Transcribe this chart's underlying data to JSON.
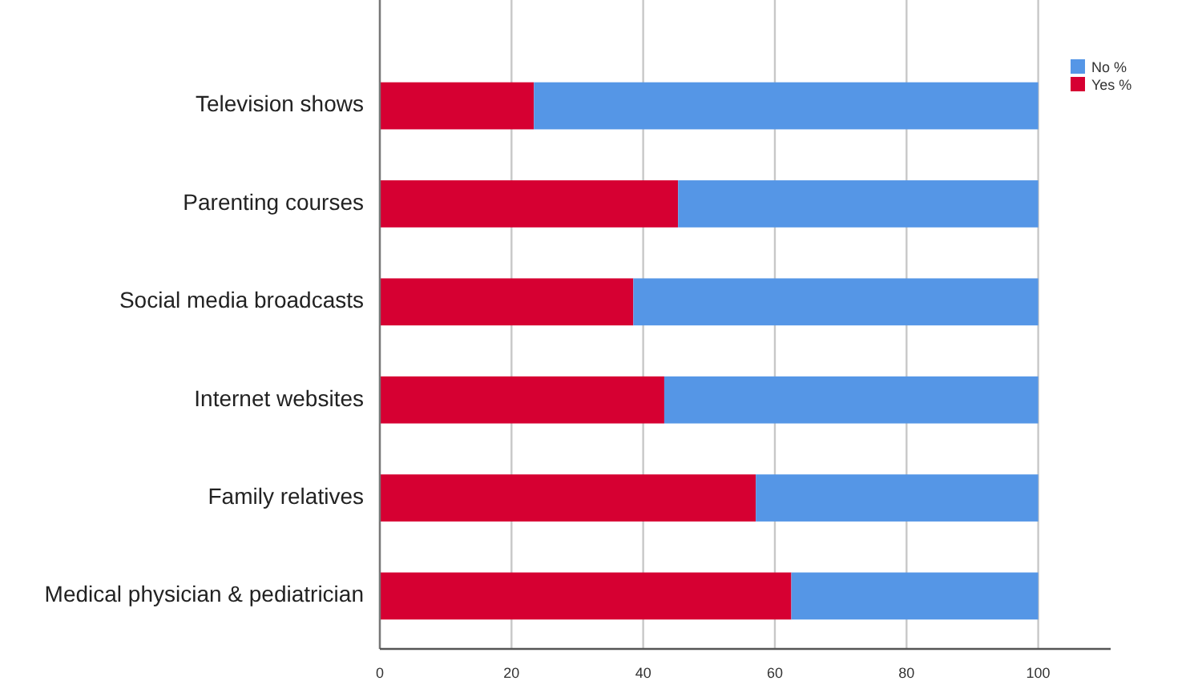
{
  "chart_data": {
    "type": "bar",
    "orientation": "horizontal",
    "stacked": true,
    "categories": [
      "Television shows",
      "Parenting courses",
      "Social media broadcasts",
      "Internet websites",
      "Family relatives",
      "Medical physician & pediatrician"
    ],
    "series": [
      {
        "name": "Yes %",
        "color": "#d60032",
        "values": [
          23.4,
          45.3,
          38.5,
          43.2,
          57.1,
          62.5
        ]
      },
      {
        "name": "No %",
        "color": "#5596e6",
        "values": [
          76.6,
          54.7,
          61.5,
          56.8,
          42.9,
          37.5
        ]
      }
    ],
    "xlim": [
      0,
      111
    ],
    "xticks": [
      0,
      20,
      40,
      60,
      80,
      100
    ],
    "grid": "x",
    "legend": "top right"
  }
}
